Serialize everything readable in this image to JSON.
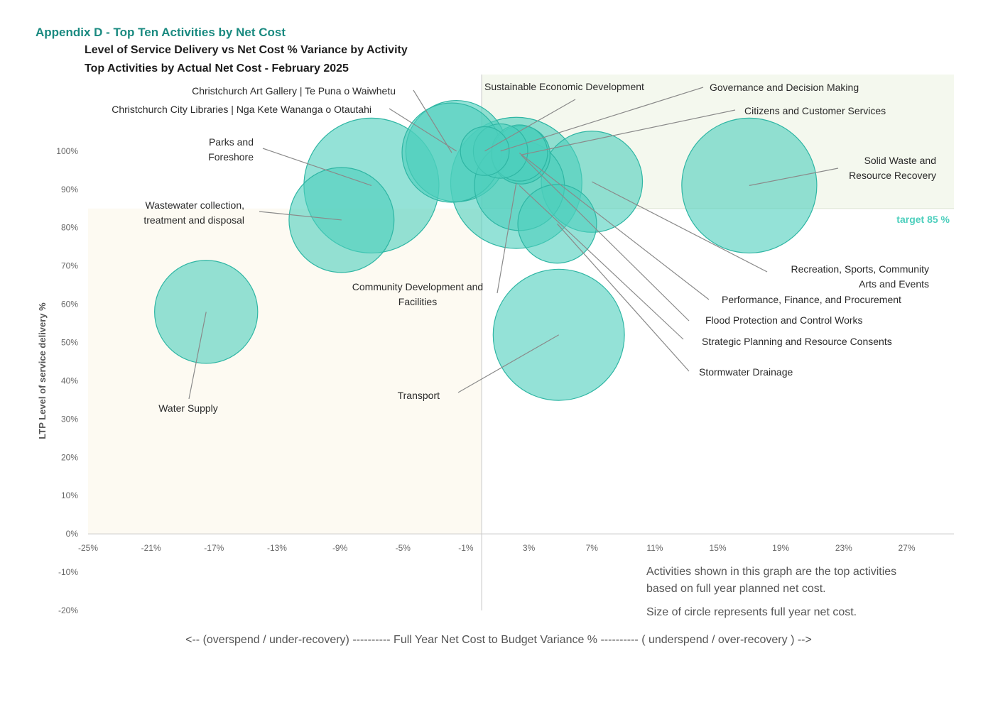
{
  "appendix_title": "Appendix D - Top Ten Activities by Net Cost",
  "chart_data": {
    "type": "scatter",
    "title": "Level of Service Delivery vs Net Cost % Variance by Activity",
    "subtitle": "Top Activities by Actual  Net Cost - February 2025",
    "xlabel": "<-- (overspend / under-recovery) ---------- Full Year Net Cost to Budget Variance % ---------- ( underspend / over-recovery ) -->",
    "ylabel": "LTP Level of service delivery %",
    "xlim": [
      -25,
      30
    ],
    "ylim": [
      -20,
      120
    ],
    "x_ticks": [
      "-25%",
      "-21%",
      "-17%",
      "-13%",
      "-9%",
      "-5%",
      "-1%",
      "3%",
      "7%",
      "11%",
      "15%",
      "19%",
      "23%",
      "27%"
    ],
    "y_ticks": [
      "100%",
      "90%",
      "80%",
      "70%",
      "60%",
      "50%",
      "40%",
      "30%",
      "20%",
      "10%",
      "0%",
      "-10%",
      "-20%"
    ],
    "target_label": "target 85 %",
    "target_value": 85,
    "bubble_color": "#4dcfbd",
    "bubble_stroke": "#2fb6a4",
    "notes": [
      "Activities shown in this graph are the top activities",
      "based on full year planned net cost.",
      "Size of circle represents full year net cost."
    ],
    "points": [
      {
        "name": "Christchurch Art Gallery | Te Puna o Waiwhetu",
        "x": -1.9,
        "y": 99.6,
        "size": 5.3
      },
      {
        "name": "Christchurch City Libraries | Nga Kete Wananga o Otautahi",
        "x": -1.6,
        "y": 100.0,
        "size": 5.4
      },
      {
        "name": "Sustainable Economic Development",
        "x": 0.2,
        "y": 100.0,
        "size": 2.6
      },
      {
        "name": "Governance and Decision Making",
        "x": 1.2,
        "y": 100.0,
        "size": 2.9
      },
      {
        "name": "Citizens and Customer Services",
        "x": 2.5,
        "y": 99.0,
        "size": 3.1
      },
      {
        "name": "Parks and Foreshore",
        "x": -7.0,
        "y": 91.0,
        "size": 7.2
      },
      {
        "name": "Wastewater collection, treatment and disposal",
        "x": -8.9,
        "y": 82.0,
        "size": 5.6
      },
      {
        "name": "Community Development and Facilities",
        "x": 2.2,
        "y": 91.7,
        "size": 7.0
      },
      {
        "name": "Solid Waste and Resource Recovery",
        "x": 17.0,
        "y": 91.0,
        "size": 7.2
      },
      {
        "name": "Recreation, Sports, Community Arts and Events",
        "x": 7.0,
        "y": 92.0,
        "size": 5.4
      },
      {
        "name": "Performance, Finance, and Procurement",
        "x": 2.4,
        "y": 99.5,
        "size": 3.0
      },
      {
        "name": "Flood Protection and Control Works",
        "x": 2.5,
        "y": 99.0,
        "size": 3.1
      },
      {
        "name": "Strategic Planning and Resource Consents",
        "x": 2.4,
        "y": 91.0,
        "size": 4.8
      },
      {
        "name": "Stormwater Drainage",
        "x": 4.8,
        "y": 81.0,
        "size": 4.2
      },
      {
        "name": "Transport",
        "x": 4.9,
        "y": 52.0,
        "size": 7.0
      },
      {
        "name": "Water Supply",
        "x": -17.5,
        "y": 58.0,
        "size": 5.5
      }
    ],
    "labels": [
      {
        "lines": [
          "Christchurch Art Gallery | Te Puna o Waiwhetu"
        ],
        "anchor": "end",
        "point": 0
      },
      {
        "lines": [
          "Christchurch City Libraries | Nga Kete Wananga o Otautahi"
        ],
        "anchor": "end",
        "point": 1
      },
      {
        "lines": [
          "Sustainable Economic Development"
        ],
        "anchor": "start",
        "point": 2
      },
      {
        "lines": [
          "Governance and Decision Making"
        ],
        "anchor": "start",
        "point": 3
      },
      {
        "lines": [
          "Citizens and Customer Services"
        ],
        "anchor": "start",
        "point": 4
      },
      {
        "lines": [
          "Parks and",
          "Foreshore"
        ],
        "anchor": "end",
        "point": 5
      },
      {
        "lines": [
          "Wastewater collection,",
          "treatment and disposal"
        ],
        "anchor": "end",
        "point": 6
      },
      {
        "lines": [
          "Community Development and",
          "Facilities"
        ],
        "anchor": "middle",
        "point": 7
      },
      {
        "lines": [
          "Solid Waste and",
          "Resource Recovery"
        ],
        "anchor": "end",
        "point": 8
      },
      {
        "lines": [
          "Recreation, Sports, Community",
          "Arts and Events"
        ],
        "anchor": "end",
        "point": 9
      },
      {
        "lines": [
          "Performance, Finance, and Procurement"
        ],
        "anchor": "start",
        "point": 10
      },
      {
        "lines": [
          "Flood Protection and Control Works"
        ],
        "anchor": "start",
        "point": 11
      },
      {
        "lines": [
          "Strategic Planning and Resource Consents"
        ],
        "anchor": "start",
        "point": 12
      },
      {
        "lines": [
          "Stormwater Drainage"
        ],
        "anchor": "start",
        "point": 13
      },
      {
        "lines": [
          "Transport"
        ],
        "anchor": "end",
        "point": 14
      },
      {
        "lines": [
          "Water Supply"
        ],
        "anchor": "middle",
        "point": 15
      }
    ]
  }
}
